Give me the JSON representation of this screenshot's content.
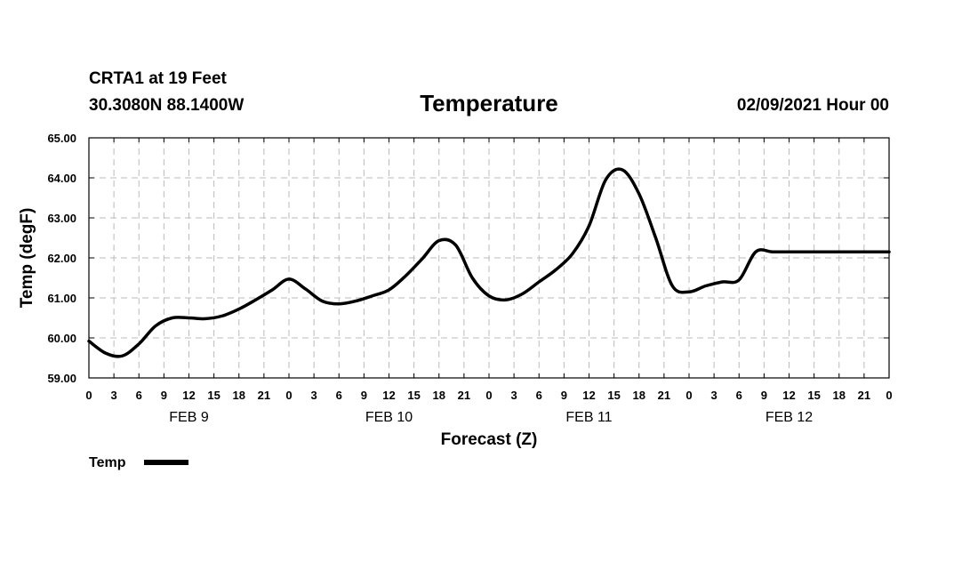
{
  "header": {
    "station": "CRTA1 at 19 Feet",
    "coords": "30.3080N 88.1400W",
    "title": "Temperature",
    "run": "02/09/2021 Hour 00"
  },
  "chart_data": {
    "type": "line",
    "title": "Temperature",
    "xlabel": "Forecast (Z)",
    "ylabel": "Temp (degF)",
    "xlim": [
      0,
      96
    ],
    "ylim": [
      59.0,
      65.0
    ],
    "grid": true,
    "yticks": [
      "59.00",
      "60.00",
      "61.00",
      "62.00",
      "63.00",
      "64.00",
      "65.00"
    ],
    "ytick_values": [
      59,
      60,
      61,
      62,
      63,
      64,
      65
    ],
    "xtick_labels": [
      "0",
      "3",
      "6",
      "9",
      "12",
      "15",
      "18",
      "21",
      "0",
      "3",
      "6",
      "9",
      "12",
      "15",
      "18",
      "21",
      "0",
      "3",
      "6",
      "9",
      "12",
      "15",
      "18",
      "21",
      "0",
      "3",
      "6",
      "9",
      "12",
      "15",
      "18",
      "21",
      "0"
    ],
    "day_labels": [
      {
        "label": "FEB 9",
        "x": 12
      },
      {
        "label": "FEB 10",
        "x": 36
      },
      {
        "label": "FEB 11",
        "x": 60
      },
      {
        "label": "FEB 12",
        "x": 84
      }
    ],
    "legend": {
      "label": "Temp",
      "placement": "bottom-left"
    },
    "series": [
      {
        "name": "Temp",
        "x": [
          0,
          2,
          4,
          6,
          8,
          10,
          12,
          14,
          16,
          18,
          20,
          22,
          24,
          26,
          28,
          30,
          32,
          34,
          36,
          38,
          40,
          42,
          44,
          46,
          48,
          50,
          52,
          54,
          56,
          58,
          60,
          62,
          64,
          66,
          68,
          70,
          72,
          74,
          76,
          78,
          80,
          82,
          84,
          86,
          88,
          90,
          92,
          94,
          96
        ],
        "values": [
          59.92,
          59.62,
          59.55,
          59.85,
          60.3,
          60.5,
          60.5,
          60.48,
          60.55,
          60.72,
          60.95,
          61.2,
          61.47,
          61.22,
          60.92,
          60.85,
          60.92,
          61.05,
          61.2,
          61.55,
          61.98,
          62.43,
          62.32,
          61.5,
          61.05,
          60.95,
          61.1,
          61.4,
          61.7,
          62.1,
          62.8,
          63.95,
          64.2,
          63.6,
          62.5,
          61.3,
          61.15,
          61.3,
          61.4,
          61.45,
          62.15,
          62.15,
          62.15,
          62.15,
          62.15,
          62.15,
          62.15,
          62.15,
          62.15
        ]
      }
    ]
  }
}
